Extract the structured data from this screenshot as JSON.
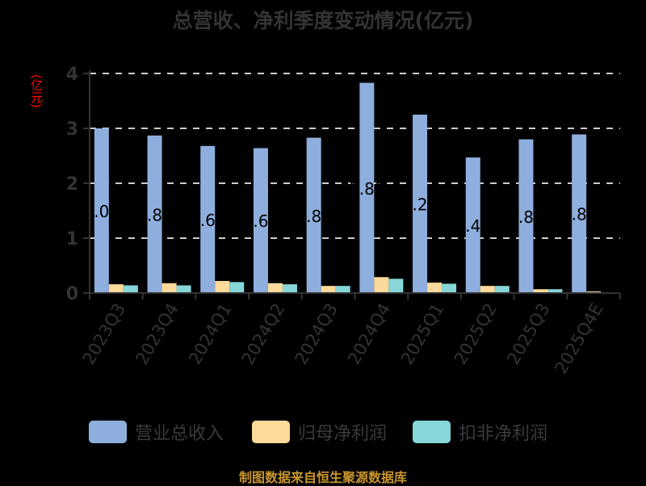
{
  "title": "总营收、净利季度变动情况(亿元)",
  "y_unit_label": "(亿元)",
  "footer": "制图数据来自恒生聚源数据库",
  "colors": {
    "background": "#000000",
    "revenue": "#8eaedd",
    "net_profit": "#fdd99a",
    "deducted_profit": "#87d6d8",
    "grid": "#cccccc",
    "axis": "#333333",
    "footer": "#c9962a",
    "unit": "#ff0000"
  },
  "legend": [
    {
      "label": "营业总收入",
      "color": "#8eaedd"
    },
    {
      "label": "归母净利润",
      "color": "#fdd99a"
    },
    {
      "label": "扣非净利润",
      "color": "#87d6d8"
    }
  ],
  "chart_data": {
    "type": "bar",
    "title": "总营收、净利季度变动情况(亿元)",
    "xlabel": "",
    "ylabel": "(亿元)",
    "ylim": [
      0,
      4
    ],
    "yticks": [
      0,
      1,
      2,
      3,
      4
    ],
    "grid": true,
    "legend_position": "bottom",
    "categories": [
      "2023Q3",
      "2023Q4",
      "2024Q1",
      "2024Q2",
      "2024Q3",
      "2024Q4",
      "2025Q1",
      "2025Q2",
      "2025Q3",
      "2025Q4E"
    ],
    "series": [
      {
        "name": "营业总收入",
        "values": [
          3.0,
          2.87,
          2.68,
          2.64,
          2.83,
          3.83,
          3.25,
          2.47,
          2.8,
          2.89
        ],
        "labels": [
          "3.00",
          "2.87",
          "2.68",
          "2.64",
          "2.83",
          "3.83",
          "3.25",
          "2.47",
          "2.80",
          "2.89"
        ]
      },
      {
        "name": "归母净利润",
        "values": [
          0.16,
          0.18,
          0.22,
          0.18,
          0.13,
          0.29,
          0.19,
          0.13,
          0.07,
          0.03
        ]
      },
      {
        "name": "扣非净利润",
        "values": [
          0.14,
          0.14,
          0.2,
          0.16,
          0.13,
          0.26,
          0.17,
          0.13,
          0.07,
          0.01
        ]
      }
    ]
  }
}
